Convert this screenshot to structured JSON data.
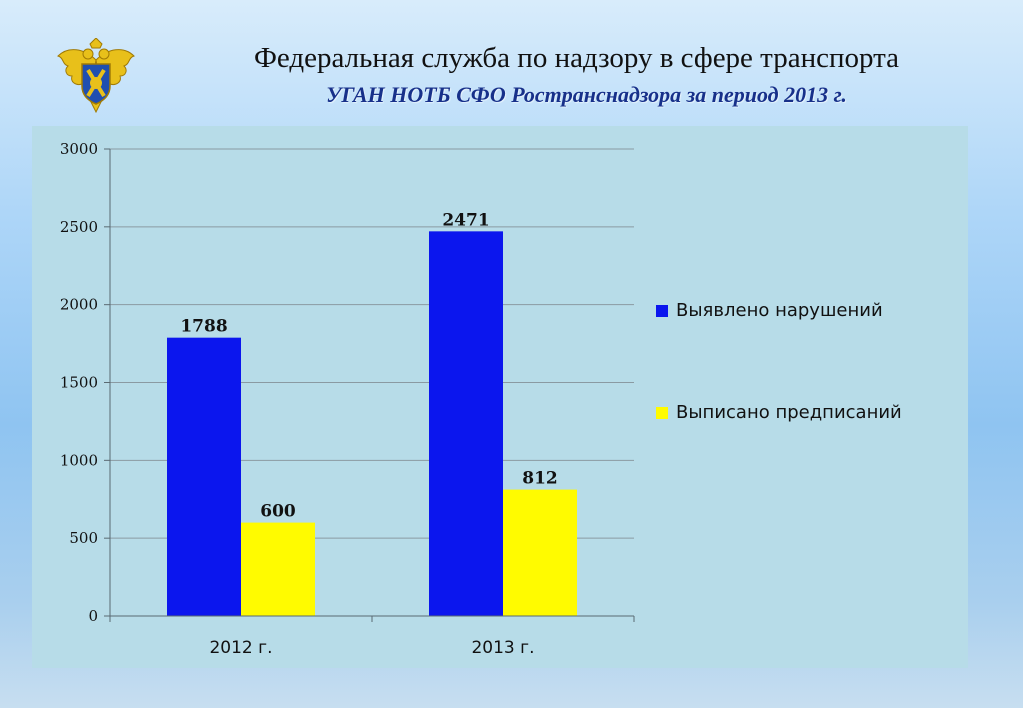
{
  "header": {
    "title": "Федеральная служба по надзору в сфере транспорта",
    "subtitle": "УГАН НОТБ СФО Ространснадзора за период 2013 г."
  },
  "emblem": {
    "icon": "double-headed-eagle-emblem"
  },
  "colors": {
    "series1": "#0b16ee",
    "series2": "#fffb00",
    "panel": "#b7dce8",
    "subtitle": "#17308a"
  },
  "chart_data": {
    "type": "bar",
    "categories": [
      "2012 г.",
      "2013 г."
    ],
    "series": [
      {
        "name": "Выявлено нарушений",
        "values": [
          1788,
          2471
        ]
      },
      {
        "name": "Выписано предписаний",
        "values": [
          600,
          812
        ]
      }
    ],
    "ylim": [
      0,
      3000
    ],
    "yticks": [
      0,
      500,
      1000,
      1500,
      2000,
      2500,
      3000
    ],
    "grid": true,
    "legend": "right",
    "xlabel": "",
    "ylabel": ""
  }
}
